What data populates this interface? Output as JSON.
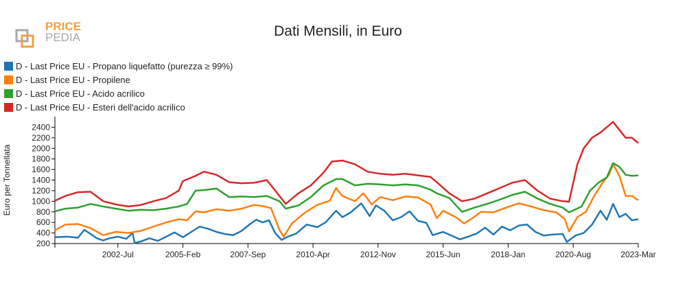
{
  "logo": {
    "line1": "PRICE",
    "line2": "PEDIA",
    "accent_color": "#f0a040",
    "secondary_color": "#a8a8a8"
  },
  "chart_data": {
    "type": "line",
    "title": "Dati Mensili, in Euro",
    "xlabel": "",
    "ylabel": "Euro per Tonnellata",
    "ylim": [
      200,
      2600
    ],
    "yticks": [
      200,
      400,
      600,
      800,
      1000,
      1200,
      1400,
      1600,
      1800,
      2000,
      2200,
      2400
    ],
    "xlim": [
      "2000-01",
      "2023-03"
    ],
    "xticks": [
      {
        "date": "2002-07",
        "label": "2002-Jul"
      },
      {
        "date": "2005-02",
        "label": "2005-Feb"
      },
      {
        "date": "2007-09",
        "label": "2007-Sep"
      },
      {
        "date": "2010-04",
        "label": "2010-Apr"
      },
      {
        "date": "2012-11",
        "label": "2012-Nov"
      },
      {
        "date": "2015-06",
        "label": "2015-Jun"
      },
      {
        "date": "2018-01",
        "label": "2018-Jan"
      },
      {
        "date": "2020-08",
        "label": "2020-Aug"
      },
      {
        "date": "2023-03",
        "label": "2023-Mar"
      }
    ],
    "legend_position": "top-left",
    "grid": false,
    "series": [
      {
        "name": "D - Last Price EU - Propano liquefatto (purezza ≥ 99%)",
        "color": "#1f77b4",
        "points": [
          [
            "2000-01",
            320
          ],
          [
            "2000-07",
            330
          ],
          [
            "2000-12",
            310
          ],
          [
            "2001-03",
            460
          ],
          [
            "2001-06",
            380
          ],
          [
            "2001-09",
            300
          ],
          [
            "2001-12",
            260
          ],
          [
            "2002-03",
            300
          ],
          [
            "2002-07",
            330
          ],
          [
            "2002-11",
            290
          ],
          [
            "2003-02",
            400
          ],
          [
            "2003-03",
            210
          ],
          [
            "2003-06",
            240
          ],
          [
            "2003-10",
            300
          ],
          [
            "2004-02",
            250
          ],
          [
            "2004-06",
            330
          ],
          [
            "2004-10",
            410
          ],
          [
            "2005-02",
            320
          ],
          [
            "2005-06",
            420
          ],
          [
            "2005-10",
            520
          ],
          [
            "2006-02",
            480
          ],
          [
            "2006-06",
            420
          ],
          [
            "2006-10",
            380
          ],
          [
            "2007-02",
            360
          ],
          [
            "2007-06",
            440
          ],
          [
            "2007-10",
            570
          ],
          [
            "2008-01",
            650
          ],
          [
            "2008-04",
            600
          ],
          [
            "2008-07",
            640
          ],
          [
            "2008-10",
            400
          ],
          [
            "2009-01",
            270
          ],
          [
            "2009-04",
            330
          ],
          [
            "2009-08",
            390
          ],
          [
            "2010-01",
            560
          ],
          [
            "2010-06",
            510
          ],
          [
            "2010-10",
            600
          ],
          [
            "2011-03",
            820
          ],
          [
            "2011-06",
            700
          ],
          [
            "2011-10",
            790
          ],
          [
            "2012-03",
            960
          ],
          [
            "2012-07",
            720
          ],
          [
            "2012-10",
            920
          ],
          [
            "2013-02",
            820
          ],
          [
            "2013-06",
            640
          ],
          [
            "2013-10",
            700
          ],
          [
            "2014-02",
            810
          ],
          [
            "2014-06",
            630
          ],
          [
            "2014-10",
            590
          ],
          [
            "2015-01",
            360
          ],
          [
            "2015-06",
            420
          ],
          [
            "2015-10",
            350
          ],
          [
            "2016-02",
            280
          ],
          [
            "2016-06",
            330
          ],
          [
            "2016-10",
            390
          ],
          [
            "2017-02",
            500
          ],
          [
            "2017-06",
            370
          ],
          [
            "2017-10",
            520
          ],
          [
            "2018-02",
            450
          ],
          [
            "2018-06",
            540
          ],
          [
            "2018-10",
            560
          ],
          [
            "2019-02",
            420
          ],
          [
            "2019-06",
            350
          ],
          [
            "2019-10",
            370
          ],
          [
            "2020-03",
            380
          ],
          [
            "2020-05",
            230
          ],
          [
            "2020-09",
            350
          ],
          [
            "2021-01",
            400
          ],
          [
            "2021-05",
            560
          ],
          [
            "2021-09",
            820
          ],
          [
            "2021-12",
            650
          ],
          [
            "2022-03",
            950
          ],
          [
            "2022-06",
            700
          ],
          [
            "2022-09",
            760
          ],
          [
            "2022-12",
            640
          ],
          [
            "2023-03",
            660
          ]
        ]
      },
      {
        "name": "D - Last Price EU - Propilene",
        "color": "#ff7f0e",
        "points": [
          [
            "2000-01",
            450
          ],
          [
            "2000-06",
            560
          ],
          [
            "2000-12",
            570
          ],
          [
            "2001-06",
            490
          ],
          [
            "2001-12",
            360
          ],
          [
            "2002-06",
            420
          ],
          [
            "2002-12",
            400
          ],
          [
            "2003-06",
            440
          ],
          [
            "2003-12",
            520
          ],
          [
            "2004-06",
            600
          ],
          [
            "2004-12",
            660
          ],
          [
            "2005-04",
            640
          ],
          [
            "2005-08",
            810
          ],
          [
            "2005-12",
            790
          ],
          [
            "2006-06",
            850
          ],
          [
            "2006-12",
            820
          ],
          [
            "2007-06",
            860
          ],
          [
            "2007-12",
            930
          ],
          [
            "2008-04",
            910
          ],
          [
            "2008-08",
            870
          ],
          [
            "2008-12",
            460
          ],
          [
            "2009-02",
            330
          ],
          [
            "2009-06",
            580
          ],
          [
            "2009-12",
            780
          ],
          [
            "2010-06",
            930
          ],
          [
            "2010-12",
            1010
          ],
          [
            "2011-03",
            1250
          ],
          [
            "2011-06",
            1100
          ],
          [
            "2011-12",
            1000
          ],
          [
            "2012-04",
            1150
          ],
          [
            "2012-08",
            940
          ],
          [
            "2012-12",
            1080
          ],
          [
            "2013-06",
            1020
          ],
          [
            "2013-12",
            1090
          ],
          [
            "2014-06",
            1070
          ],
          [
            "2014-12",
            940
          ],
          [
            "2015-03",
            680
          ],
          [
            "2015-06",
            820
          ],
          [
            "2015-12",
            700
          ],
          [
            "2016-04",
            580
          ],
          [
            "2016-08",
            680
          ],
          [
            "2016-12",
            800
          ],
          [
            "2017-06",
            790
          ],
          [
            "2017-12",
            880
          ],
          [
            "2018-06",
            960
          ],
          [
            "2018-12",
            900
          ],
          [
            "2019-06",
            830
          ],
          [
            "2019-12",
            790
          ],
          [
            "2020-04",
            660
          ],
          [
            "2020-06",
            430
          ],
          [
            "2020-10",
            700
          ],
          [
            "2021-02",
            800
          ],
          [
            "2021-06",
            1100
          ],
          [
            "2021-10",
            1350
          ],
          [
            "2022-01",
            1500
          ],
          [
            "2022-03",
            1700
          ],
          [
            "2022-06",
            1480
          ],
          [
            "2022-09",
            1100
          ],
          [
            "2022-12",
            1100
          ],
          [
            "2023-03",
            1020
          ]
        ]
      },
      {
        "name": "D - Last Price EU - Acido acrilico",
        "color": "#2ca02c",
        "points": [
          [
            "2000-01",
            810
          ],
          [
            "2000-06",
            860
          ],
          [
            "2000-12",
            880
          ],
          [
            "2001-06",
            950
          ],
          [
            "2001-12",
            900
          ],
          [
            "2002-06",
            860
          ],
          [
            "2002-12",
            820
          ],
          [
            "2003-06",
            840
          ],
          [
            "2003-12",
            830
          ],
          [
            "2004-06",
            860
          ],
          [
            "2004-12",
            900
          ],
          [
            "2005-04",
            950
          ],
          [
            "2005-08",
            1200
          ],
          [
            "2005-12",
            1210
          ],
          [
            "2006-06",
            1240
          ],
          [
            "2006-12",
            1080
          ],
          [
            "2007-06",
            1090
          ],
          [
            "2007-12",
            1080
          ],
          [
            "2008-06",
            1100
          ],
          [
            "2008-12",
            1000
          ],
          [
            "2009-03",
            860
          ],
          [
            "2009-09",
            920
          ],
          [
            "2010-03",
            1080
          ],
          [
            "2010-09",
            1300
          ],
          [
            "2011-03",
            1420
          ],
          [
            "2011-06",
            1420
          ],
          [
            "2011-12",
            1300
          ],
          [
            "2012-06",
            1330
          ],
          [
            "2012-12",
            1320
          ],
          [
            "2013-06",
            1300
          ],
          [
            "2013-12",
            1320
          ],
          [
            "2014-06",
            1300
          ],
          [
            "2014-12",
            1220
          ],
          [
            "2015-03",
            1150
          ],
          [
            "2015-09",
            1060
          ],
          [
            "2016-03",
            800
          ],
          [
            "2016-09",
            880
          ],
          [
            "2017-03",
            950
          ],
          [
            "2017-09",
            1030
          ],
          [
            "2018-03",
            1120
          ],
          [
            "2018-09",
            1180
          ],
          [
            "2019-03",
            1050
          ],
          [
            "2019-09",
            950
          ],
          [
            "2020-03",
            880
          ],
          [
            "2020-06",
            790
          ],
          [
            "2020-12",
            900
          ],
          [
            "2021-04",
            1200
          ],
          [
            "2021-08",
            1350
          ],
          [
            "2021-12",
            1450
          ],
          [
            "2022-03",
            1720
          ],
          [
            "2022-06",
            1650
          ],
          [
            "2022-09",
            1500
          ],
          [
            "2022-12",
            1480
          ],
          [
            "2023-03",
            1490
          ]
        ]
      },
      {
        "name": "D - Last Price EU - Esteri dell'acido acrilico",
        "color": "#d62728",
        "points": [
          [
            "2000-01",
            1010
          ],
          [
            "2000-06",
            1100
          ],
          [
            "2000-12",
            1170
          ],
          [
            "2001-06",
            1180
          ],
          [
            "2001-12",
            1000
          ],
          [
            "2002-06",
            940
          ],
          [
            "2002-12",
            900
          ],
          [
            "2003-06",
            930
          ],
          [
            "2003-12",
            1000
          ],
          [
            "2004-06",
            1060
          ],
          [
            "2004-12",
            1200
          ],
          [
            "2005-02",
            1380
          ],
          [
            "2005-08",
            1480
          ],
          [
            "2005-12",
            1560
          ],
          [
            "2006-06",
            1500
          ],
          [
            "2006-12",
            1360
          ],
          [
            "2007-06",
            1340
          ],
          [
            "2007-12",
            1350
          ],
          [
            "2008-06",
            1400
          ],
          [
            "2008-12",
            1100
          ],
          [
            "2009-03",
            950
          ],
          [
            "2009-09",
            1150
          ],
          [
            "2010-03",
            1300
          ],
          [
            "2010-09",
            1540
          ],
          [
            "2011-01",
            1750
          ],
          [
            "2011-06",
            1770
          ],
          [
            "2011-12",
            1700
          ],
          [
            "2012-06",
            1560
          ],
          [
            "2012-12",
            1520
          ],
          [
            "2013-06",
            1500
          ],
          [
            "2013-12",
            1520
          ],
          [
            "2014-06",
            1490
          ],
          [
            "2014-12",
            1460
          ],
          [
            "2015-03",
            1360
          ],
          [
            "2015-09",
            1150
          ],
          [
            "2016-03",
            1000
          ],
          [
            "2016-09",
            1050
          ],
          [
            "2017-03",
            1150
          ],
          [
            "2017-09",
            1250
          ],
          [
            "2018-03",
            1350
          ],
          [
            "2018-09",
            1400
          ],
          [
            "2019-03",
            1200
          ],
          [
            "2019-09",
            1050
          ],
          [
            "2020-03",
            1000
          ],
          [
            "2020-06",
            990
          ],
          [
            "2020-10",
            1700
          ],
          [
            "2021-01",
            2000
          ],
          [
            "2021-05",
            2200
          ],
          [
            "2021-09",
            2300
          ],
          [
            "2021-12",
            2400
          ],
          [
            "2022-03",
            2500
          ],
          [
            "2022-06",
            2350
          ],
          [
            "2022-09",
            2200
          ],
          [
            "2022-12",
            2200
          ],
          [
            "2023-03",
            2100
          ]
        ]
      }
    ]
  }
}
